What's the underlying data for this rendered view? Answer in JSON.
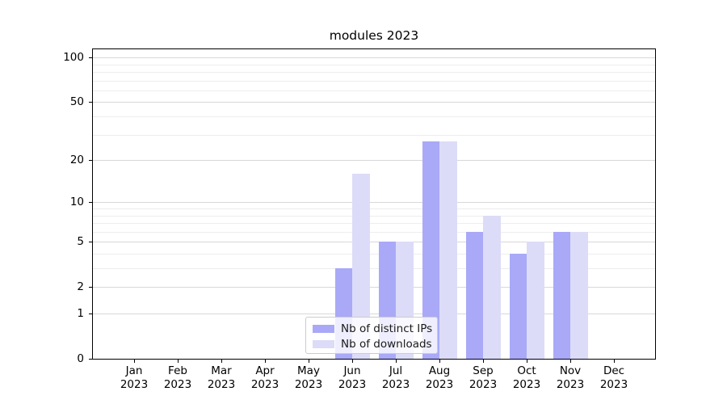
{
  "chart_data": {
    "type": "bar",
    "title": "modules 2023",
    "categories": [
      "Jan",
      "Feb",
      "Mar",
      "Apr",
      "May",
      "Jun",
      "Jul",
      "Aug",
      "Sep",
      "Oct",
      "Nov",
      "Dec"
    ],
    "category_year": "2023",
    "series": [
      {
        "name": "Nb of distinct IPs",
        "color": "#a9a9f8",
        "values": [
          0,
          0,
          0,
          0,
          0,
          3,
          5,
          27,
          6,
          4,
          6,
          0
        ]
      },
      {
        "name": "Nb of downloads",
        "color": "#dcdcf8",
        "values": [
          0,
          0,
          0,
          0,
          0,
          16,
          5,
          27,
          8,
          5,
          6,
          0
        ]
      }
    ],
    "yaxis": {
      "scale": "log1p",
      "ticks": [
        0,
        1,
        2,
        5,
        10,
        20,
        50,
        100
      ],
      "minor_ticks": [
        3,
        4,
        6,
        7,
        8,
        9,
        30,
        40,
        60,
        70,
        80,
        90
      ],
      "range": [
        0,
        115
      ]
    },
    "xlabel": "",
    "ylabel": "",
    "grid": true,
    "legend_position": "bottom-center"
  },
  "colors": {
    "major_grid": "#d8d8d8",
    "minor_grid": "#ededed",
    "spine": "#000000",
    "text": "#000000",
    "legend_border": "#cccccc"
  }
}
